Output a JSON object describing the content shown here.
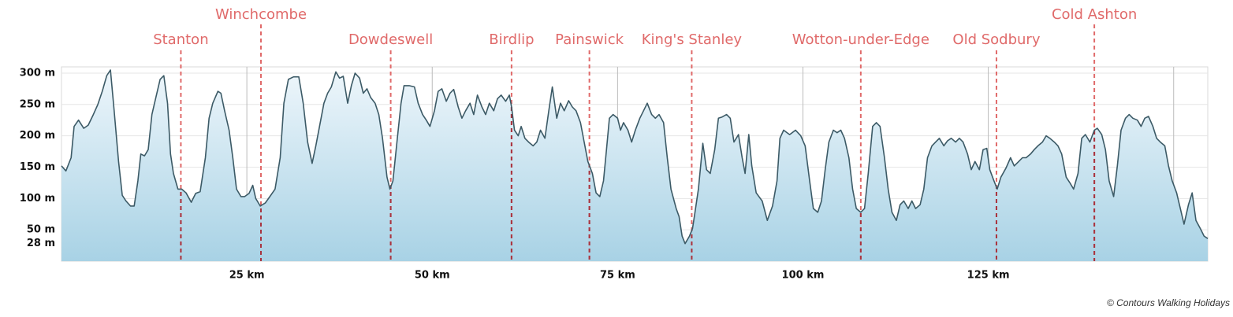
{
  "chart_data": {
    "type": "area",
    "color": "#3c5a66",
    "x": [
      0.0,
      0.6,
      1.3,
      1.7,
      2.3,
      3.0,
      3.6,
      4.3,
      4.9,
      5.5,
      6.1,
      6.6,
      7.1,
      7.7,
      8.2,
      8.7,
      9.3,
      9.8,
      10.3,
      10.7,
      11.2,
      11.7,
      12.2,
      12.8,
      13.3,
      13.8,
      14.3,
      14.7,
      15.1,
      15.7,
      16.2,
      16.8,
      17.5,
      18.1,
      18.7,
      19.4,
      19.9,
      20.4,
      21.1,
      21.5,
      22.0,
      22.6,
      23.1,
      23.6,
      24.2,
      24.7,
      25.3,
      25.8,
      26.2,
      26.8,
      27.5,
      28.1,
      28.8,
      29.5,
      30.0,
      30.6,
      31.3,
      32.0,
      32.6,
      33.2,
      33.8,
      34.3,
      34.8,
      35.4,
      35.9,
      36.4,
      37.0,
      37.5,
      38.0,
      38.6,
      39.1,
      39.6,
      40.2,
      40.7,
      41.2,
      41.7,
      42.3,
      42.8,
      43.3,
      43.9,
      44.3,
      44.7,
      45.3,
      45.8,
      46.2,
      46.9,
      47.6,
      48.1,
      48.7,
      49.2,
      49.7,
      50.3,
      50.8,
      51.3,
      51.9,
      52.4,
      52.9,
      53.5,
      54.0,
      54.5,
      55.1,
      55.6,
      56.1,
      56.7,
      57.2,
      57.7,
      58.3,
      58.8,
      59.3,
      59.9,
      60.4,
      60.7,
      61.1,
      61.6,
      62.0,
      62.5,
      63.0,
      63.6,
      64.1,
      64.6,
      65.2,
      65.7,
      66.2,
      66.8,
      67.3,
      67.8,
      68.4,
      68.9,
      69.4,
      70.0,
      70.5,
      71.0,
      71.6,
      72.1,
      72.6,
      73.1,
      73.5,
      73.9,
      74.4,
      75.0,
      75.4,
      75.8,
      76.4,
      76.9,
      77.4,
      78.0,
      78.5,
      79.0,
      79.6,
      80.1,
      80.6,
      81.2,
      81.7,
      82.2,
      82.9,
      83.3,
      83.7,
      84.1,
      84.7,
      85.1,
      85.4,
      85.9,
      86.5,
      87.0,
      87.5,
      88.1,
      88.6,
      89.1,
      89.7,
      90.2,
      90.7,
      91.3,
      91.8,
      92.2,
      92.7,
      93.1,
      93.7,
      94.5,
      95.2,
      95.9,
      96.5,
      96.9,
      97.4,
      98.2,
      99.0,
      99.7,
      100.3,
      100.9,
      101.4,
      102.0,
      102.5,
      103.0,
      103.5,
      104.1,
      104.6,
      105.1,
      105.6,
      106.2,
      106.7,
      107.2,
      107.8,
      108.3,
      108.8,
      109.4,
      109.9,
      110.4,
      111.0,
      111.5,
      112.0,
      112.6,
      113.1,
      113.6,
      114.2,
      114.7,
      115.2,
      115.8,
      116.3,
      116.8,
      117.4,
      117.9,
      118.4,
      119.0,
      119.5,
      120.0,
      120.6,
      121.1,
      121.6,
      122.2,
      122.7,
      123.2,
      123.8,
      124.3,
      124.8,
      125.2,
      125.7,
      126.2,
      126.7,
      127.4,
      128.0,
      128.5,
      129.1,
      129.6,
      130.1,
      130.7,
      131.2,
      131.7,
      132.3,
      132.8,
      133.3,
      133.9,
      134.4,
      134.9,
      135.5,
      136.0,
      136.5,
      137.1,
      137.6,
      138.1,
      138.7,
      139.3,
      139.7,
      140.3,
      140.8,
      141.3,
      141.9,
      142.4,
      142.9,
      143.5,
      144.0,
      144.5,
      145.1,
      145.6,
      146.1,
      146.6,
      147.2,
      147.7,
      148.2,
      148.8,
      149.3,
      149.8,
      150.4,
      150.9,
      151.4,
      152.0,
      152.5,
      153.0,
      153.6,
      154.1,
      154.6
    ],
    "values": [
      152,
      144,
      165,
      215,
      225,
      212,
      217,
      234,
      250,
      271,
      296,
      305,
      240,
      159,
      105,
      96,
      88,
      88,
      128,
      171,
      168,
      178,
      234,
      265,
      290,
      296,
      252,
      171,
      140,
      115,
      115,
      109,
      94,
      108,
      111,
      165,
      228,
      252,
      271,
      268,
      240,
      209,
      165,
      115,
      103,
      103,
      108,
      121,
      100,
      88,
      93,
      103,
      115,
      165,
      252,
      290,
      294,
      294,
      252,
      190,
      156,
      184,
      215,
      252,
      268,
      278,
      302,
      292,
      295,
      252,
      280,
      300,
      292,
      268,
      275,
      261,
      252,
      234,
      196,
      134,
      115,
      128,
      196,
      252,
      280,
      280,
      278,
      252,
      234,
      225,
      215,
      240,
      271,
      275,
      255,
      268,
      274,
      246,
      228,
      240,
      252,
      234,
      265,
      246,
      234,
      252,
      240,
      259,
      265,
      255,
      265,
      246,
      209,
      200,
      215,
      196,
      190,
      184,
      190,
      209,
      196,
      238,
      278,
      228,
      252,
      240,
      256,
      246,
      240,
      221,
      190,
      159,
      140,
      109,
      103,
      128,
      178,
      228,
      234,
      228,
      209,
      221,
      209,
      190,
      209,
      228,
      240,
      252,
      234,
      228,
      234,
      221,
      165,
      115,
      84,
      71,
      40,
      28,
      40,
      52,
      75,
      115,
      188,
      146,
      140,
      178,
      228,
      230,
      234,
      228,
      190,
      202,
      165,
      140,
      202,
      152,
      109,
      96,
      65,
      88,
      128,
      196,
      209,
      202,
      209,
      200,
      184,
      128,
      84,
      78,
      96,
      146,
      190,
      209,
      205,
      209,
      196,
      165,
      115,
      84,
      78,
      84,
      140,
      215,
      221,
      215,
      165,
      115,
      78,
      65,
      90,
      96,
      84,
      96,
      84,
      90,
      115,
      165,
      184,
      190,
      196,
      184,
      192,
      196,
      190,
      196,
      190,
      171,
      146,
      159,
      146,
      178,
      180,
      146,
      130,
      115,
      134,
      149,
      165,
      152,
      159,
      165,
      165,
      171,
      178,
      184,
      190,
      200,
      196,
      190,
      184,
      171,
      134,
      125,
      115,
      140,
      196,
      202,
      190,
      209,
      212,
      202,
      178,
      128,
      103,
      152,
      209,
      228,
      234,
      228,
      225,
      215,
      228,
      231,
      215,
      196,
      190,
      184,
      152,
      128,
      109,
      84,
      59,
      90,
      109,
      65,
      52,
      40,
      36
    ],
    "xlim": [
      0,
      154.6
    ],
    "ylim": [
      0,
      310
    ],
    "yticks": [
      {
        "value": 28,
        "label": "28 m"
      },
      {
        "value": 50,
        "label": "50 m"
      },
      {
        "value": 100,
        "label": "100 m"
      },
      {
        "value": 150,
        "label": "150 m"
      },
      {
        "value": 200,
        "label": "200 m"
      },
      {
        "value": 250,
        "label": "250 m"
      },
      {
        "value": 300,
        "label": "300 m"
      }
    ],
    "xticks": [
      {
        "value": 25,
        "label": "25 km"
      },
      {
        "value": 50,
        "label": "50 km"
      },
      {
        "value": 75,
        "label": "75 km"
      },
      {
        "value": 100,
        "label": "100 km"
      },
      {
        "value": 125,
        "label": "125 km"
      },
      {
        "value": 150,
        "label": null
      }
    ],
    "grid": true,
    "annotations": [
      {
        "label": "Stanton",
        "x": 16.1
      },
      {
        "label": "Winchcombe",
        "x": 26.9
      },
      {
        "label": "Dowdeswell",
        "x": 44.4
      },
      {
        "label": "Birdlip",
        "x": 60.7
      },
      {
        "label": "Painswick",
        "x": 71.2
      },
      {
        "label": "King's Stanley",
        "x": 85.0
      },
      {
        "label": "Wotton-under-Edge",
        "x": 107.8
      },
      {
        "label": "Old Sodbury",
        "x": 126.1
      },
      {
        "label": "Cold Ashton",
        "x": 139.3
      }
    ],
    "credit": "© Contours Walking Holidays"
  }
}
